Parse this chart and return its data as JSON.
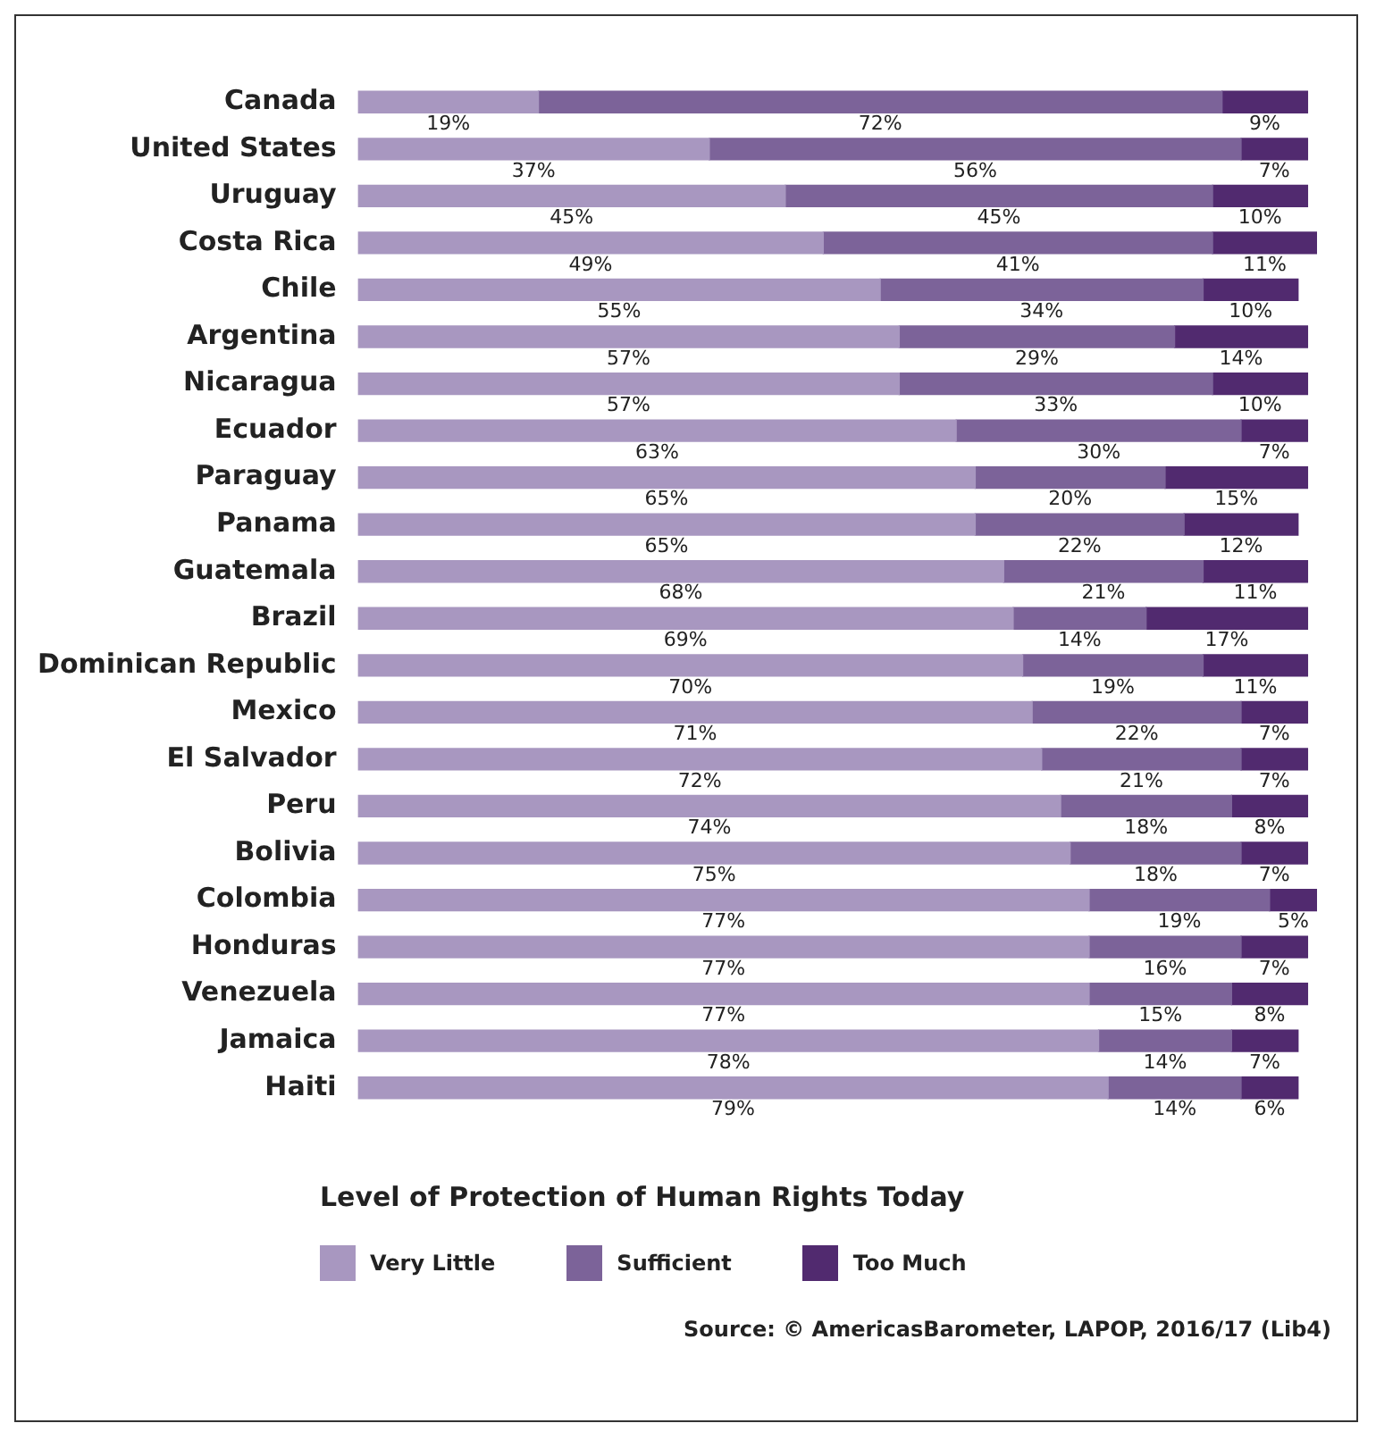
{
  "chart_data": {
    "type": "bar",
    "orientation": "horizontal",
    "stacked": true,
    "legend": "bottom",
    "legend_title": "Level of Protection of Human Rights Today",
    "categories": [
      "Canada",
      "United States",
      "Uruguay",
      "Costa Rica",
      "Chile",
      "Argentina",
      "Nicaragua",
      "Ecuador",
      "Paraguay",
      "Panama",
      "Guatemala",
      "Brazil",
      "Dominican Republic",
      "Mexico",
      "El Salvador",
      "Peru",
      "Bolivia",
      "Colombia",
      "Honduras",
      "Venezuela",
      "Jamaica",
      "Haiti"
    ],
    "series": [
      {
        "name": "Very Little",
        "color": "#a897c0",
        "values": [
          19,
          37,
          45,
          49,
          55,
          57,
          57,
          63,
          65,
          65,
          68,
          69,
          70,
          71,
          72,
          74,
          75,
          77,
          77,
          77,
          78,
          79
        ],
        "value_labels": [
          "19%",
          "37%",
          "45%",
          "49%",
          "55%",
          "57%",
          "57%",
          "63%",
          "65%",
          "65%",
          "68%",
          "69%",
          "70%",
          "71%",
          "72%",
          "74%",
          "75%",
          "77%",
          "77%",
          "77%",
          "78%",
          "79%"
        ]
      },
      {
        "name": "Sufficient",
        "color": "#7c6399",
        "values": [
          72,
          56,
          45,
          41,
          34,
          29,
          33,
          30,
          20,
          22,
          21,
          14,
          19,
          22,
          21,
          18,
          18,
          19,
          16,
          15,
          14,
          14
        ],
        "value_labels": [
          "72%",
          "56%",
          "45%",
          "41%",
          "34%",
          "29%",
          "33%",
          "30%",
          "20%",
          "22%",
          "21%",
          "14%",
          "19%",
          "22%",
          "21%",
          "18%",
          "18%",
          "19%",
          "16%",
          "15%",
          "14%",
          "14%"
        ]
      },
      {
        "name": "Too Much",
        "color": "#512a6f",
        "values": [
          9,
          7,
          10,
          11,
          10,
          14,
          10,
          7,
          15,
          12,
          11,
          17,
          11,
          7,
          7,
          8,
          7,
          5,
          7,
          8,
          7,
          6
        ],
        "value_labels": [
          "9%",
          "7%",
          "10%",
          "11%",
          "10%",
          "14%",
          "10%",
          "7%",
          "15%",
          "12%",
          "11%",
          "17%",
          "11%",
          "7%",
          "7%",
          "8%",
          "7%",
          "5%",
          "7%",
          "8%",
          "7%",
          "6%"
        ]
      }
    ],
    "annotations": [
      "Source: © AmericasBarometer, LAPOP, 2016/17 (Lib4)"
    ]
  }
}
